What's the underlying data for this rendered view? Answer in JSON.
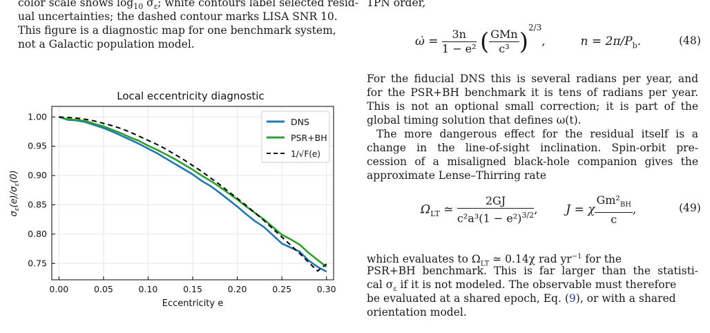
{
  "caption_lines": [
    "color scale shows log",
    "ual uncertainties; the dashed contour marks LISA SNR 10.",
    "This figure is a diagnostic map for one benchmark system,",
    "not a Galactic population model."
  ],
  "caption_line1_parts": {
    "pre": "color scale shows log",
    "sub": "10",
    "post": " σ",
    "sub2": "ε",
    "post2": "; white contours label selected resid-"
  },
  "right_text": {
    "top_fragment": "1PN order,",
    "para1": [
      "For the fiducial DNS this is several radians per year, and",
      "for the PSR+BH benchmark it is tens of radians per year.",
      "This is not an optional small correction; it is part of the",
      "global timing solution that defines ω(t)."
    ],
    "para2": [
      "The more dangerous effect for the residual itself is a",
      "change in the line-of-sight inclination.  Spin-orbit pre-",
      "cession of a misaligned black-hole companion gives the",
      "approximate Lense–Thirring rate"
    ],
    "para3": [
      "which  evaluates  to  Ω",
      "PSR+BH benchmark. This is far larger than the statisti-",
      "cal σ",
      "be evaluated at a shared epoch, Eq. (9), or with a shared",
      "orientation model."
    ],
    "para3_line1_tail": "  ≃   0.14χ rad yr",
    "para3_line1_end": "  for  the",
    "para3_line3_tail": " if it is not modeled. The observable must therefore",
    "eq_ref": "9"
  },
  "equations": {
    "eq48_number": "(48)",
    "eq49_number": "(49)",
    "eq48_lhs": "ω̇ =",
    "eq48_num": "3n",
    "eq48_den": "1 − e²",
    "eq48_inner_num": "GMn",
    "eq48_inner_den": "c³",
    "eq48_exp": "2/3",
    "eq48_rhs": "n = 2π/P",
    "eq48_rhs_sub": "b",
    "eq49_lhs": "Ω",
    "eq49_lhs_sub": "LT",
    "eq49_num": "2GJ",
    "eq49_den": "c²a³(1 − e²)",
    "eq49_den_exp": "3/2",
    "eq49_rhs": "J = χ",
    "eq49_rhs_num": "Gm²",
    "eq49_rhs_num_sub": "BH",
    "eq49_rhs_den": "c"
  },
  "chart_data": {
    "type": "line",
    "title": "Local eccentricity diagnostic",
    "xlabel": "Eccentricity e",
    "ylabel": "σε(e)/σε(0)",
    "xlim": [
      -0.008,
      0.308
    ],
    "ylim": [
      0.722,
      1.018
    ],
    "xticks": [
      0.0,
      0.05,
      0.1,
      0.15,
      0.2,
      0.25,
      0.3
    ],
    "xtick_labels": [
      "0.00",
      "0.05",
      "0.10",
      "0.15",
      "0.20",
      "0.25",
      "0.30"
    ],
    "yticks": [
      0.75,
      0.8,
      0.85,
      0.9,
      0.95,
      1.0
    ],
    "ytick_labels": [
      "0.75",
      "0.80",
      "0.85",
      "0.90",
      "0.95",
      "1.00"
    ],
    "grid": true,
    "legend_position": "top-right",
    "series": [
      {
        "name": "DNS",
        "color": "#1f77b4",
        "style": "solid",
        "x": [
          0.0,
          0.01,
          0.02,
          0.03,
          0.04,
          0.05,
          0.06,
          0.07,
          0.08,
          0.09,
          0.1,
          0.11,
          0.12,
          0.13,
          0.14,
          0.15,
          0.16,
          0.17,
          0.18,
          0.19,
          0.2,
          0.21,
          0.22,
          0.23,
          0.24,
          0.25,
          0.26,
          0.27,
          0.28,
          0.29,
          0.3
        ],
        "y": [
          1.0,
          0.995,
          0.994,
          0.991,
          0.986,
          0.981,
          0.975,
          0.968,
          0.961,
          0.954,
          0.946,
          0.938,
          0.929,
          0.92,
          0.911,
          0.902,
          0.891,
          0.882,
          0.871,
          0.859,
          0.847,
          0.834,
          0.822,
          0.812,
          0.798,
          0.784,
          0.777,
          0.77,
          0.755,
          0.744,
          0.736
        ]
      },
      {
        "name": "PSR+BH",
        "color": "#2ca02c",
        "style": "solid",
        "x": [
          0.0,
          0.01,
          0.02,
          0.03,
          0.04,
          0.05,
          0.06,
          0.07,
          0.08,
          0.09,
          0.1,
          0.11,
          0.12,
          0.13,
          0.14,
          0.15,
          0.16,
          0.17,
          0.18,
          0.19,
          0.2,
          0.21,
          0.22,
          0.23,
          0.24,
          0.25,
          0.26,
          0.27,
          0.28,
          0.29,
          0.3
        ],
        "y": [
          1.0,
          0.996,
          0.995,
          0.993,
          0.988,
          0.984,
          0.978,
          0.972,
          0.965,
          0.959,
          0.951,
          0.944,
          0.936,
          0.928,
          0.919,
          0.91,
          0.9,
          0.891,
          0.881,
          0.87,
          0.859,
          0.847,
          0.836,
          0.825,
          0.812,
          0.799,
          0.791,
          0.782,
          0.768,
          0.756,
          0.744
        ]
      },
      {
        "name": "1/√F(e)",
        "color": "#000000",
        "style": "dashed",
        "x": [
          0.0,
          0.01,
          0.02,
          0.03,
          0.04,
          0.05,
          0.06,
          0.07,
          0.08,
          0.09,
          0.1,
          0.11,
          0.12,
          0.13,
          0.14,
          0.15,
          0.16,
          0.17,
          0.18,
          0.19,
          0.2,
          0.21,
          0.22,
          0.23,
          0.24,
          0.25,
          0.26,
          0.27,
          0.28,
          0.29,
          0.3
        ],
        "y": [
          1.0,
          0.999,
          0.998,
          0.996,
          0.993,
          0.989,
          0.985,
          0.98,
          0.974,
          0.967,
          0.96,
          0.953,
          0.945,
          0.936,
          0.927,
          0.917,
          0.907,
          0.896,
          0.885,
          0.873,
          0.861,
          0.849,
          0.836,
          0.823,
          0.809,
          0.795,
          0.781,
          0.767,
          0.752,
          0.737,
          0.749
        ]
      }
    ]
  }
}
